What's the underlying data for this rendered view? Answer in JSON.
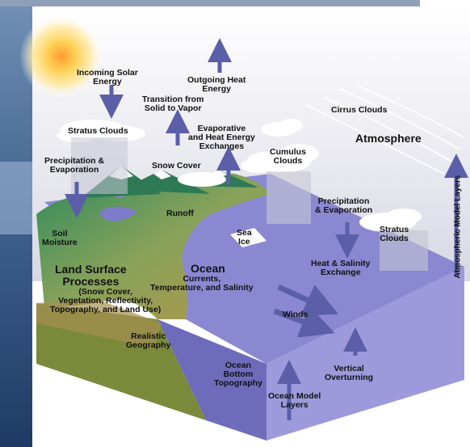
{
  "labels": {
    "incoming_solar": "Incoming Solar\nEnergy",
    "outgoing_heat": "Outgoing Heat\nEnergy",
    "transition": "Transition from\nSolid to Vapor",
    "stratus_left": "Stratus Clouds",
    "evaporative": "Evaporative\nand Heat Energy\nExchanges",
    "cirrus": "Cirrus Clouds",
    "atmosphere": "Atmosphere",
    "precip_left": "Precipitation &\nEvaporation",
    "snow_cover": "Snow Cover",
    "cumulus": "Cumulus\nClouds",
    "atm_model_layers": "Atmospheric Model Layers",
    "precip_right": "Precipitation\n& Evaporation",
    "runoff": "Runoff",
    "soil_moisture": "Soil\nMoisture",
    "sea_ice": "Sea\nIce",
    "stratus_right": "Stratus\nClouds",
    "land_surface": "Land Surface\nProcesses",
    "land_surface_sub": "(Snow Cover,\nVegetation, Reflectivity,\nTopography, and Land Use)",
    "ocean": "Ocean",
    "ocean_sub": "Currents,\nTemperature, and Salinity",
    "heat_salinity": "Heat & Salinity\nExchange",
    "winds": "Winds",
    "realistic_geo": "Realistic\nGeography",
    "ocean_bottom": "Ocean\nBottom\nTopography",
    "vertical_overturning": "Vertical\nOverturning",
    "ocean_model_layers": "Ocean Model\nLayers"
  },
  "colors": {
    "sky_top": "#ffffff",
    "sky_bottom": "#dcdce6",
    "ocean": "#8a86cf",
    "ocean_dark": "#6f6bbb",
    "land_green": "#3c9a6a",
    "land_brown": "#a08a4a",
    "arrow": "#5b5fa8",
    "sun": "#f5c242",
    "left_panel": "#2f4d7a",
    "box_side": "#9d9adb"
  },
  "icons": [
    "sun-icon",
    "cloud-icon",
    "arrow-icon"
  ]
}
